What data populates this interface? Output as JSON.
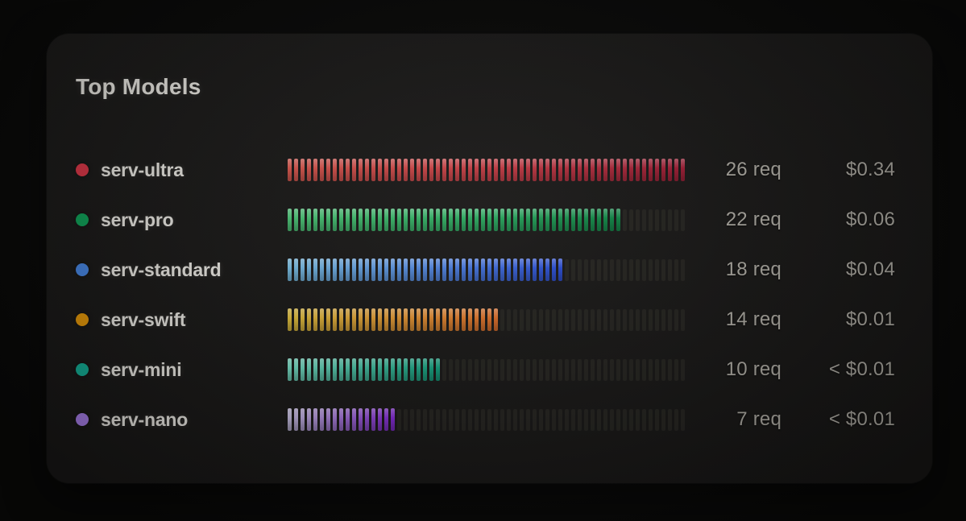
{
  "card": {
    "title": "Top Models"
  },
  "colors": {
    "page_bg": "#0a0a09",
    "card_bg": "#1b1a19",
    "label_text": "#f4f2ec",
    "value_text": "#b5b2aa",
    "track_tick": "#262521"
  },
  "bar": {
    "total_ticks": 62
  },
  "rows": [
    {
      "label": "serv-ultra",
      "dot_color": "#e6394a",
      "bar_colors": [
        "#e05a50",
        "#a81f38"
      ],
      "requests": 26,
      "requests_label": "26 req",
      "cost_label": "$0.34"
    },
    {
      "label": "serv-pro",
      "dot_color": "#10a95c",
      "bar_colors": [
        "#4ecb7a",
        "#108a48"
      ],
      "requests": 22,
      "requests_label": "22 req",
      "cost_label": "$0.06"
    },
    {
      "label": "serv-standard",
      "dot_color": "#4a8df0",
      "bar_colors": [
        "#7cc4ec",
        "#2b4ed6"
      ],
      "requests": 18,
      "requests_label": "18 req",
      "cost_label": "$0.04"
    },
    {
      "label": "serv-swift",
      "dot_color": "#f2a008",
      "bar_colors": [
        "#e8c53e",
        "#e2702a"
      ],
      "requests": 14,
      "requests_label": "14 req",
      "cost_label": "$0.01"
    },
    {
      "label": "serv-mini",
      "dot_color": "#14b89e",
      "bar_colors": [
        "#7ae6cc",
        "#12a582"
      ],
      "requests": 10,
      "requests_label": "10 req",
      "cost_label": "< $0.01"
    },
    {
      "label": "serv-nano",
      "dot_color": "#b084f5",
      "bar_colors": [
        "#cfc6ec",
        "#8a2ce0"
      ],
      "requests": 7,
      "requests_label": "7 req",
      "cost_label": "< $0.01"
    }
  ],
  "chart_data": {
    "type": "bar",
    "orientation": "horizontal",
    "bar_style": "segmented-ticks",
    "title": "Top Models",
    "categories": [
      "serv-ultra",
      "serv-pro",
      "serv-standard",
      "serv-swift",
      "serv-mini",
      "serv-nano"
    ],
    "series": [
      {
        "name": "requests",
        "values": [
          26,
          22,
          18,
          14,
          10,
          7
        ]
      },
      {
        "name": "cost",
        "values": [
          "$0.34",
          "$0.06",
          "$0.04",
          "$0.01",
          "< $0.01",
          "< $0.01"
        ]
      }
    ],
    "xlim": [
      0,
      26
    ],
    "legend": "none",
    "grid": false
  }
}
